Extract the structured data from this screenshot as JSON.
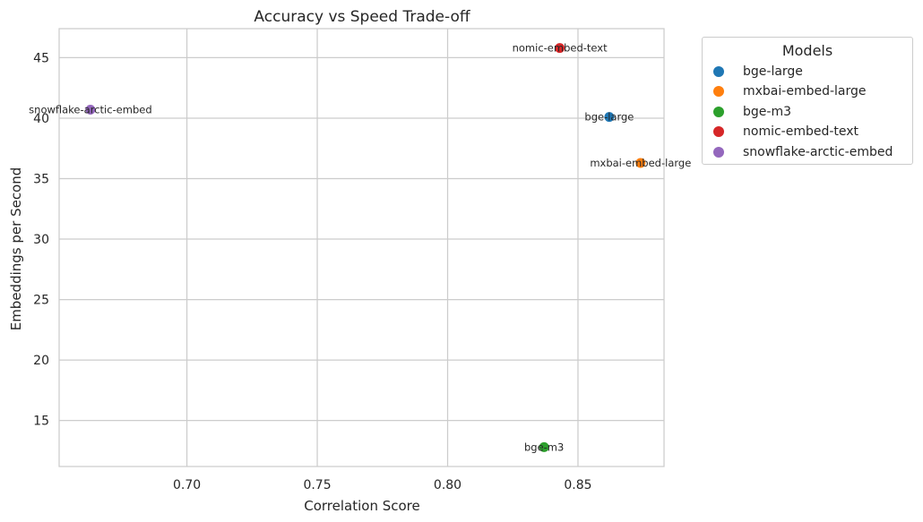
{
  "chart_data": {
    "type": "scatter",
    "title": "Accuracy vs Speed Trade-off",
    "xlabel": "Correlation Score",
    "ylabel": "Embeddings per Second",
    "xlim": [
      0.651,
      0.883
    ],
    "ylim": [
      11.2,
      47.4
    ],
    "xticks": [
      0.7,
      0.75,
      0.8,
      0.85
    ],
    "xtick_labels": [
      "0.70",
      "0.75",
      "0.80",
      "0.85"
    ],
    "yticks": [
      15,
      20,
      25,
      30,
      35,
      40,
      45
    ],
    "ytick_labels": [
      "15",
      "20",
      "25",
      "30",
      "35",
      "40",
      "45"
    ],
    "grid": true,
    "legend_title": "Models",
    "legend_position": "outside-top-right",
    "series": [
      {
        "name": "bge-large",
        "color": "#1f77b4",
        "x": 0.862,
        "y": 40.1,
        "label": "bge-large"
      },
      {
        "name": "mxbai-embed-large",
        "color": "#ff7f0e",
        "x": 0.874,
        "y": 36.3,
        "label": "mxbai-embed-large"
      },
      {
        "name": "bge-m3",
        "color": "#2ca02c",
        "x": 0.837,
        "y": 12.8,
        "label": "bge-m3"
      },
      {
        "name": "nomic-embed-text",
        "color": "#d62728",
        "x": 0.843,
        "y": 45.8,
        "label": "nomic-embed-text"
      },
      {
        "name": "snowflake-arctic-embed",
        "color": "#9467bd",
        "x": 0.663,
        "y": 40.7,
        "label": "snowflake-arctic-embed"
      }
    ]
  }
}
